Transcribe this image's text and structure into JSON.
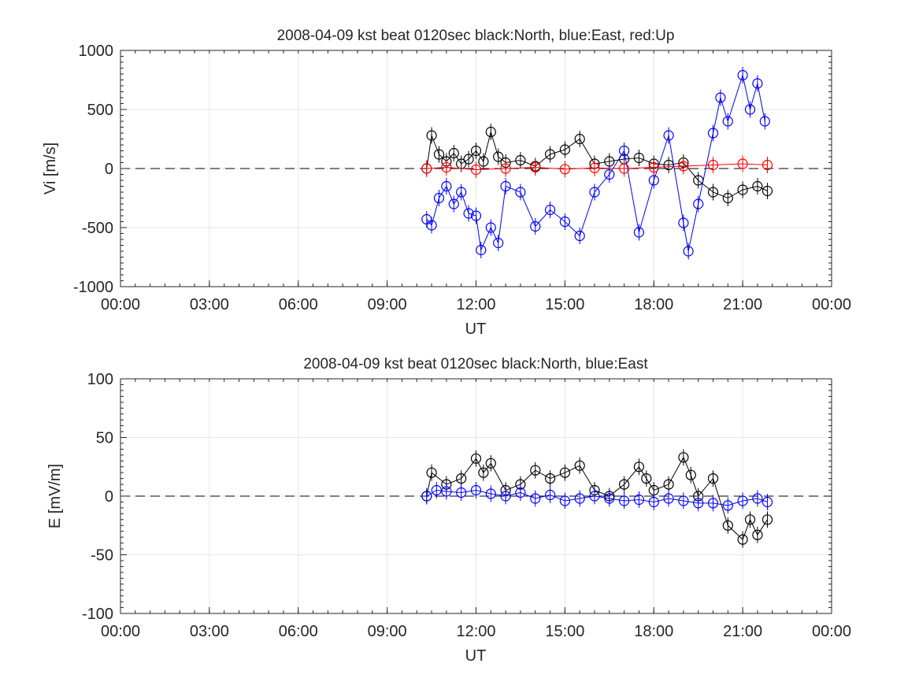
{
  "chart_data": [
    {
      "type": "scatter",
      "title": "2008-04-09 kst beat 0120sec black:North, blue:East, red:Up",
      "xlabel": "UT",
      "ylabel": "Vi [m/s]",
      "xlim": [
        "00:00",
        "24:00"
      ],
      "ylim": [
        -1000,
        1000
      ],
      "xticks": [
        "00:00",
        "03:00",
        "06:00",
        "09:00",
        "12:00",
        "15:00",
        "18:00",
        "21:00",
        "00:00"
      ],
      "yticks": [
        "-1000",
        "-500",
        "0",
        "500",
        "1000"
      ],
      "grid": true,
      "reference_line": {
        "y": 0,
        "style": "dashed"
      },
      "colors": {
        "North": "#000000",
        "East": "#0000ff",
        "Up": "#ff0000"
      },
      "marker": "open-circle-with-error-bars",
      "series": [
        {
          "name": "North",
          "x": [
            "10:20",
            "10:30",
            "10:45",
            "11:00",
            "11:15",
            "11:30",
            "11:45",
            "12:00",
            "12:15",
            "12:30",
            "12:45",
            "13:00",
            "13:30",
            "14:00",
            "14:30",
            "15:00",
            "15:30",
            "16:00",
            "16:30",
            "17:00",
            "17:30",
            "18:00",
            "18:30",
            "19:00",
            "19:30",
            "20:00",
            "20:30",
            "21:00",
            "21:30",
            "21:50"
          ],
          "y": [
            0,
            280,
            120,
            60,
            130,
            40,
            80,
            150,
            60,
            310,
            100,
            50,
            70,
            20,
            120,
            160,
            250,
            40,
            60,
            80,
            90,
            40,
            30,
            50,
            -100,
            -200,
            -250,
            -180,
            -150,
            -190
          ]
        },
        {
          "name": "East",
          "x": [
            "10:20",
            "10:30",
            "10:45",
            "11:00",
            "11:15",
            "11:30",
            "11:45",
            "12:00",
            "12:10",
            "12:30",
            "12:45",
            "13:00",
            "13:30",
            "14:00",
            "14:30",
            "15:00",
            "15:30",
            "16:00",
            "16:30",
            "17:00",
            "17:30",
            "18:00",
            "18:30",
            "19:00",
            "19:10",
            "19:30",
            "20:00",
            "20:15",
            "20:30",
            "21:00",
            "21:15",
            "21:30",
            "21:45"
          ],
          "y": [
            -430,
            -480,
            -250,
            -150,
            -300,
            -200,
            -380,
            -400,
            -690,
            -500,
            -630,
            -150,
            -200,
            -490,
            -350,
            -450,
            -570,
            -200,
            -50,
            150,
            -540,
            -100,
            280,
            -460,
            -700,
            -300,
            300,
            600,
            400,
            790,
            500,
            720,
            400
          ]
        },
        {
          "name": "Up",
          "x": [
            "10:20",
            "11:00",
            "12:00",
            "13:00",
            "14:00",
            "15:00",
            "16:00",
            "17:00",
            "18:00",
            "19:00",
            "20:00",
            "21:00",
            "21:50"
          ],
          "y": [
            0,
            10,
            -10,
            0,
            10,
            -5,
            5,
            0,
            10,
            20,
            30,
            40,
            30
          ]
        }
      ]
    },
    {
      "type": "scatter",
      "title": "2008-04-09 kst beat 0120sec black:North, blue:East",
      "xlabel": "UT",
      "ylabel": "E [mV/m]",
      "xlim": [
        "00:00",
        "24:00"
      ],
      "ylim": [
        -100,
        100
      ],
      "xticks": [
        "00:00",
        "03:00",
        "06:00",
        "09:00",
        "12:00",
        "15:00",
        "18:00",
        "21:00",
        "00:00"
      ],
      "yticks": [
        "-100",
        "-50",
        "0",
        "50",
        "100"
      ],
      "grid": true,
      "reference_line": {
        "y": 0,
        "style": "dashed"
      },
      "colors": {
        "North": "#000000",
        "East": "#0000ff"
      },
      "marker": "open-circle-with-error-bars",
      "series": [
        {
          "name": "North",
          "x": [
            "10:20",
            "10:30",
            "11:00",
            "11:30",
            "12:00",
            "12:15",
            "12:30",
            "13:00",
            "13:30",
            "14:00",
            "14:30",
            "15:00",
            "15:30",
            "16:00",
            "16:30",
            "17:00",
            "17:30",
            "17:45",
            "18:00",
            "18:30",
            "19:00",
            "19:15",
            "19:30",
            "20:00",
            "20:30",
            "21:00",
            "21:15",
            "21:30",
            "21:50"
          ],
          "y": [
            0,
            20,
            10,
            15,
            32,
            20,
            28,
            5,
            10,
            22,
            15,
            20,
            26,
            5,
            0,
            10,
            25,
            15,
            5,
            10,
            33,
            18,
            0,
            15,
            -25,
            -37,
            -20,
            -33,
            -20
          ]
        },
        {
          "name": "East",
          "x": [
            "10:20",
            "10:40",
            "11:00",
            "11:30",
            "12:00",
            "12:30",
            "13:00",
            "13:30",
            "14:00",
            "14:30",
            "15:00",
            "15:30",
            "16:00",
            "16:30",
            "17:00",
            "17:30",
            "18:00",
            "18:30",
            "19:00",
            "19:30",
            "20:00",
            "20:30",
            "21:00",
            "21:30",
            "21:50"
          ],
          "y": [
            0,
            5,
            4,
            3,
            5,
            2,
            0,
            3,
            -2,
            1,
            -4,
            -2,
            0,
            -2,
            -4,
            -3,
            -5,
            -2,
            -4,
            -6,
            -6,
            -8,
            -4,
            -2,
            -5
          ]
        }
      ]
    }
  ]
}
